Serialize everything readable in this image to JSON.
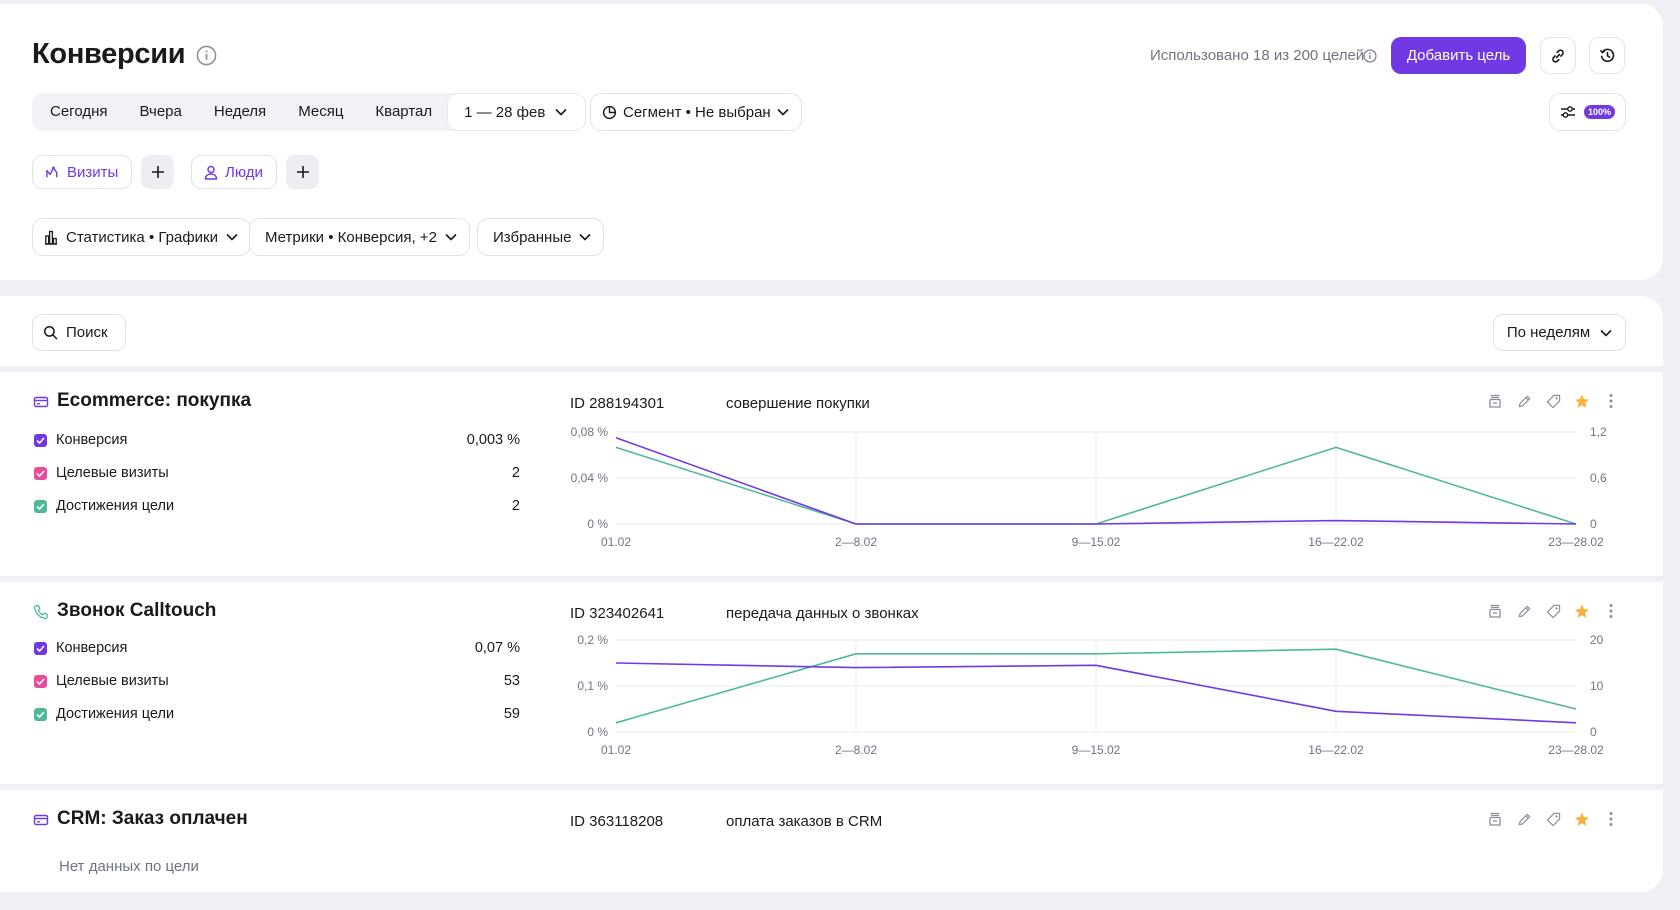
{
  "header": {
    "title": "Конверсии",
    "usage_text": "Использовано 18 из 200 целей",
    "add_goal_label": "Добавить цель",
    "periods": [
      "Сегодня",
      "Вчера",
      "Неделя",
      "Месяц",
      "Квартал"
    ],
    "date_range": "1 — 28 фев",
    "segment": "Сегмент • Не выбран",
    "sampling": "100%",
    "chips": {
      "visits": "Визиты",
      "people": "Люди"
    },
    "dropdowns": {
      "stats": "Статистика • Графики",
      "metrics": "Метрики • Конверсия, +2",
      "favorites": "Избранные"
    }
  },
  "toolbar": {
    "search_placeholder": "Поиск",
    "grouping": "По неделям"
  },
  "colors": {
    "accent": "#7139e3",
    "conversion": "#7139e3",
    "target_visits": "#e84d9a",
    "achievements": "#4fb89b",
    "star": "#f6b23a"
  },
  "metric_labels": {
    "conversion": "Конверсия",
    "visits": "Целевые визиты",
    "achievements": "Достижения цели"
  },
  "goals": [
    {
      "icon": "card-icon",
      "name": "Ecommerce: покупка",
      "id": "ID 288194301",
      "description": "совершение покупки",
      "metrics": {
        "conversion": "0,003 %",
        "visits": "2",
        "achievements": "2"
      },
      "chart_data": {
        "type": "line",
        "x": [
          "01.02",
          "2—8.02",
          "9—15.02",
          "16—22.02",
          "23—28.02"
        ],
        "y_left_ticks": [
          "0,08 %",
          "0,04 %",
          "0 %"
        ],
        "y_right_ticks": [
          "1,2",
          "0,6",
          "0"
        ],
        "y_left_max": 0.08,
        "y_right_max": 1.2,
        "series": [
          {
            "key": "conversion",
            "axis": "left",
            "values": [
              0.075,
              0,
              0,
              0.003,
              0
            ]
          },
          {
            "key": "visits",
            "axis": "right",
            "values": [
              1,
              0,
              0,
              1,
              0
            ]
          },
          {
            "key": "achievements",
            "axis": "right",
            "values": [
              1,
              0,
              0,
              1,
              0
            ]
          }
        ]
      }
    },
    {
      "icon": "phone-icon",
      "name": "Звонок Calltouch",
      "id": "ID 323402641",
      "description": "передача данных о звонках",
      "metrics": {
        "conversion": "0,07 %",
        "visits": "53",
        "achievements": "59"
      },
      "chart_data": {
        "type": "line",
        "x": [
          "01.02",
          "2—8.02",
          "9—15.02",
          "16—22.02",
          "23—28.02"
        ],
        "y_left_ticks": [
          "0,2 %",
          "0,1 %",
          "0 %"
        ],
        "y_right_ticks": [
          "20",
          "10",
          "0"
        ],
        "y_left_max": 0.2,
        "y_right_max": 20,
        "series": [
          {
            "key": "conversion",
            "axis": "left",
            "values": [
              0.15,
              0.14,
              0.145,
              0.045,
              0.02
            ]
          },
          {
            "key": "visits",
            "axis": "right",
            "values": [
              2,
              15,
              16,
              15,
              5
            ]
          },
          {
            "key": "achievements",
            "axis": "right",
            "values": [
              2,
              17,
              17,
              18,
              5
            ]
          }
        ]
      }
    },
    {
      "icon": "card-icon",
      "name": "CRM: Заказ оплачен",
      "id": "ID 363118208",
      "description": "оплата заказов в CRM",
      "no_data": "Нет данных по цели"
    }
  ]
}
